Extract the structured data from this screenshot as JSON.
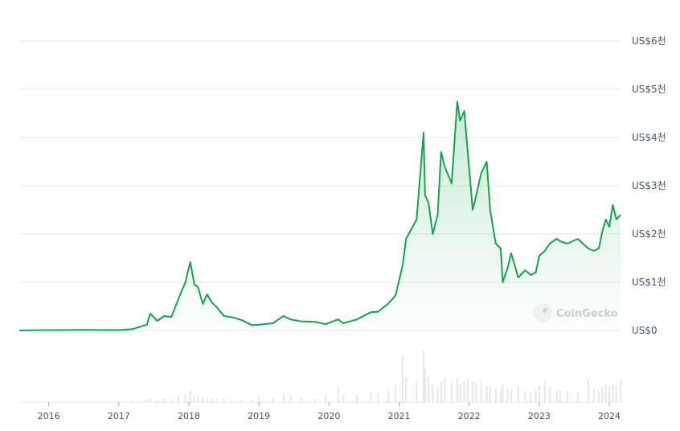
{
  "watermark": "CoinGecko",
  "colors": {
    "line": "#16a34a",
    "area_top": "#16a34a",
    "grid": "#e5e7eb",
    "volume": "#e5e7eb",
    "tick_text": "#4b5563"
  },
  "chart_data": {
    "type": "area",
    "ylim": [
      0,
      6000
    ],
    "yticks": [
      {
        "value": 0,
        "label": "US$0"
      },
      {
        "value": 1000,
        "label": "US$1천"
      },
      {
        "value": 2000,
        "label": "US$2천"
      },
      {
        "value": 3000,
        "label": "US$3천"
      },
      {
        "value": 4000,
        "label": "US$4천"
      },
      {
        "value": 5000,
        "label": "US$5천"
      },
      {
        "value": 6000,
        "label": "US$6천"
      }
    ],
    "xlim": [
      2015.58,
      2024.16
    ],
    "xticks": [
      {
        "value": 2016.0,
        "label": "2016"
      },
      {
        "value": 2017.0,
        "label": "2017"
      },
      {
        "value": 2018.0,
        "label": "2018"
      },
      {
        "value": 2019.0,
        "label": "2019"
      },
      {
        "value": 2020.0,
        "label": "2020"
      },
      {
        "value": 2021.0,
        "label": "2021"
      },
      {
        "value": 2022.0,
        "label": "2022"
      },
      {
        "value": 2023.0,
        "label": "2023"
      },
      {
        "value": 2024.0,
        "label": "2024"
      }
    ],
    "x": [
      2015.58,
      2016.0,
      2016.5,
      2017.0,
      2017.2,
      2017.4,
      2017.45,
      2017.55,
      2017.65,
      2017.75,
      2017.85,
      2017.95,
      2018.02,
      2018.08,
      2018.13,
      2018.2,
      2018.26,
      2018.33,
      2018.4,
      2018.5,
      2018.6,
      2018.75,
      2018.9,
      2019.0,
      2019.2,
      2019.35,
      2019.45,
      2019.6,
      2019.8,
      2019.95,
      2020.13,
      2020.2,
      2020.4,
      2020.6,
      2020.7,
      2020.85,
      2020.95,
      2021.05,
      2021.1,
      2021.25,
      2021.35,
      2021.37,
      2021.42,
      2021.48,
      2021.55,
      2021.6,
      2021.65,
      2021.75,
      2021.83,
      2021.87,
      2021.93,
      2021.98,
      2022.05,
      2022.1,
      2022.17,
      2022.25,
      2022.3,
      2022.38,
      2022.45,
      2022.48,
      2022.55,
      2022.6,
      2022.7,
      2022.8,
      2022.88,
      2022.95,
      2023.0,
      2023.08,
      2023.15,
      2023.25,
      2023.3,
      2023.4,
      2023.55,
      2023.7,
      2023.78,
      2023.85,
      2023.9,
      2023.95,
      2024.0,
      2024.05,
      2024.1,
      2024.16
    ],
    "values": [
      1,
      8,
      12,
      9,
      30,
      120,
      350,
      200,
      300,
      280,
      650,
      1000,
      1420,
      950,
      900,
      550,
      750,
      580,
      480,
      300,
      280,
      220,
      110,
      120,
      150,
      300,
      230,
      190,
      180,
      130,
      230,
      150,
      230,
      380,
      390,
      560,
      730,
      1350,
      1900,
      2300,
      4100,
      2800,
      2650,
      2000,
      2400,
      3700,
      3400,
      3050,
      4750,
      4350,
      4550,
      3700,
      2500,
      2800,
      3250,
      3500,
      2500,
      1800,
      1700,
      1000,
      1300,
      1600,
      1100,
      1250,
      1150,
      1200,
      1550,
      1650,
      1800,
      1900,
      1850,
      1800,
      1900,
      1700,
      1650,
      1700,
      2050,
      2300,
      2150,
      2600,
      2300,
      2400
    ],
    "volume": [
      0,
      0.5,
      0.5,
      1,
      2,
      3,
      4,
      3,
      4,
      3,
      7,
      10,
      14,
      8,
      6,
      5,
      6,
      5,
      4,
      4,
      3,
      3,
      3,
      6,
      5,
      10,
      8,
      6,
      5,
      8,
      18,
      10,
      9,
      12,
      10,
      14,
      20,
      55,
      30,
      25,
      62,
      40,
      30,
      22,
      18,
      25,
      30,
      24,
      30,
      22,
      25,
      28,
      25,
      22,
      24,
      20,
      18,
      16,
      14,
      22,
      16,
      15,
      20,
      13,
      12,
      14,
      20,
      25,
      18,
      15,
      14,
      14,
      12,
      28,
      16,
      14,
      18,
      22,
      18,
      22,
      20,
      26
    ]
  }
}
